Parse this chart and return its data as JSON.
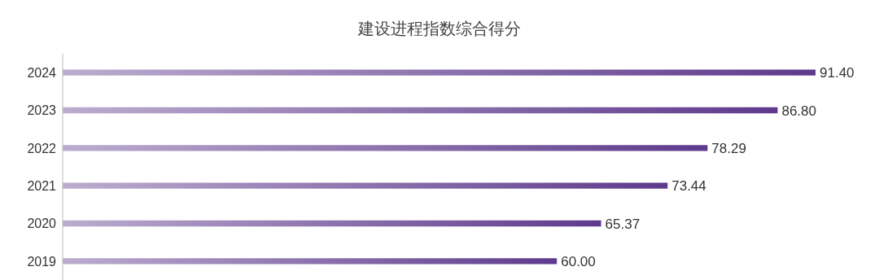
{
  "chart_data": {
    "type": "bar",
    "orientation": "horizontal",
    "title": "建设进程指数综合得分",
    "categories": [
      "2024",
      "2023",
      "2022",
      "2021",
      "2020",
      "2019"
    ],
    "values": [
      91.4,
      86.8,
      78.29,
      73.44,
      65.37,
      60.0
    ],
    "value_labels": [
      "91.40",
      "86.80",
      "78.29",
      "73.44",
      "65.37",
      "60.00"
    ],
    "color": "#5e3a8c",
    "grid": false,
    "legend": false
  }
}
